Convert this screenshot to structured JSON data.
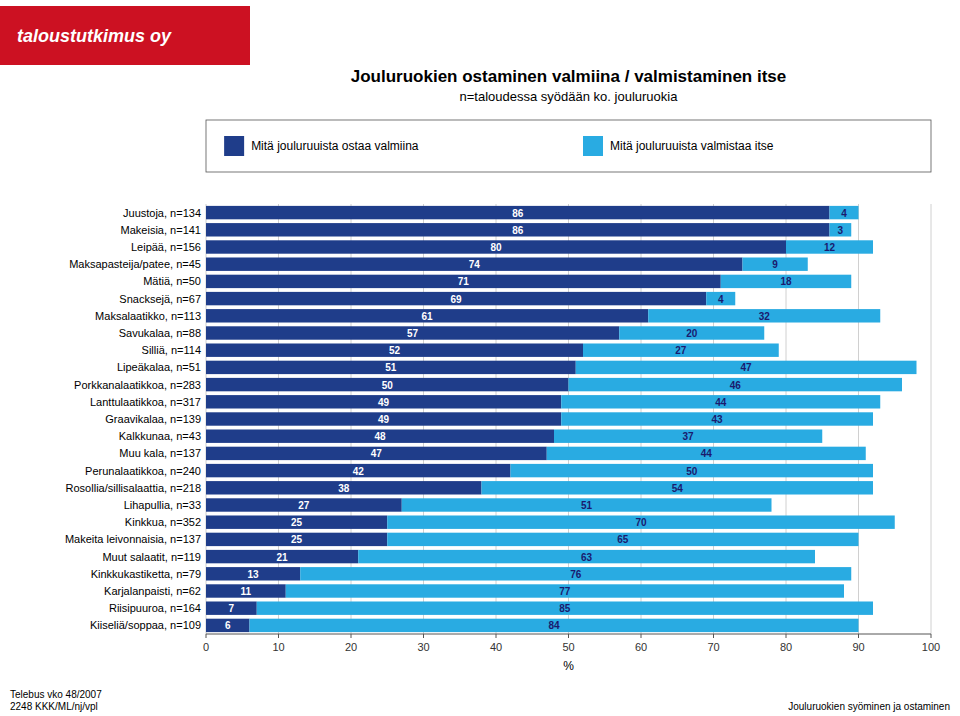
{
  "chart_data": {
    "type": "bar",
    "orientation": "horizontal",
    "stacked": true,
    "title": "Jouluruokien ostaminen valmiina / valmistaminen itse",
    "subtitle": "n=taloudessa syödään ko. jouluruokia",
    "xlabel": "%",
    "annotations": [
      "taloustutkimus oy",
      "Telebus vko 48/2007\n2248 KKK/ML/nj/vpl",
      "Jouluruokien syöminen ja ostaminen"
    ],
    "categories": [
      "Juustoja, n=134",
      "Makeisia, n=141",
      "Leipää, n=156",
      "Maksapasteija/patee, n=45",
      "Mätiä, n=50",
      "Snacksejä, n=67",
      "Maksalaatikko, n=113",
      "Savukalaa, n=88",
      "Silliä, n=114",
      "Lipeäkalaa, n=51",
      "Porkkanalaatikkoa, n=283",
      "Lanttulaatikkoa, n=317",
      "Graavikalaa, n=139",
      "Kalkkunaa, n=43",
      "Muu kala, n=137",
      "Perunalaatikkoa, n=240",
      "Rosollia/sillisalaattia, n=218",
      "Lihapullia, n=33",
      "Kinkkua, n=352",
      "Makeita leivonnaisia, n=137",
      "Muut salaatit, n=119",
      "Kinkkukastiketta, n=79",
      "Karjalanpaisti, n=62",
      "Riisipuuroa, n=164",
      "Kiiseliä/soppaa, n=109"
    ],
    "series": [
      {
        "name": "Mitä jouluruuista ostaa valmiina",
        "color": "#1F3D8A",
        "values": [
          86,
          86,
          80,
          74,
          71,
          69,
          61,
          57,
          52,
          51,
          50,
          49,
          49,
          48,
          47,
          42,
          38,
          27,
          25,
          25,
          21,
          13,
          11,
          7,
          6
        ]
      },
      {
        "name": "Mitä jouluruuista valmistaa itse",
        "color": "#29ABE2",
        "values": [
          4,
          3,
          12,
          9,
          18,
          4,
          32,
          20,
          27,
          47,
          46,
          44,
          43,
          37,
          44,
          50,
          54,
          51,
          70,
          65,
          63,
          76,
          77,
          85,
          84
        ]
      }
    ],
    "xlim": [
      0,
      100
    ],
    "xticks": [
      0,
      10,
      20,
      30,
      40,
      50,
      60,
      70,
      80,
      90,
      100
    ],
    "grid": true,
    "data_labels": true
  }
}
